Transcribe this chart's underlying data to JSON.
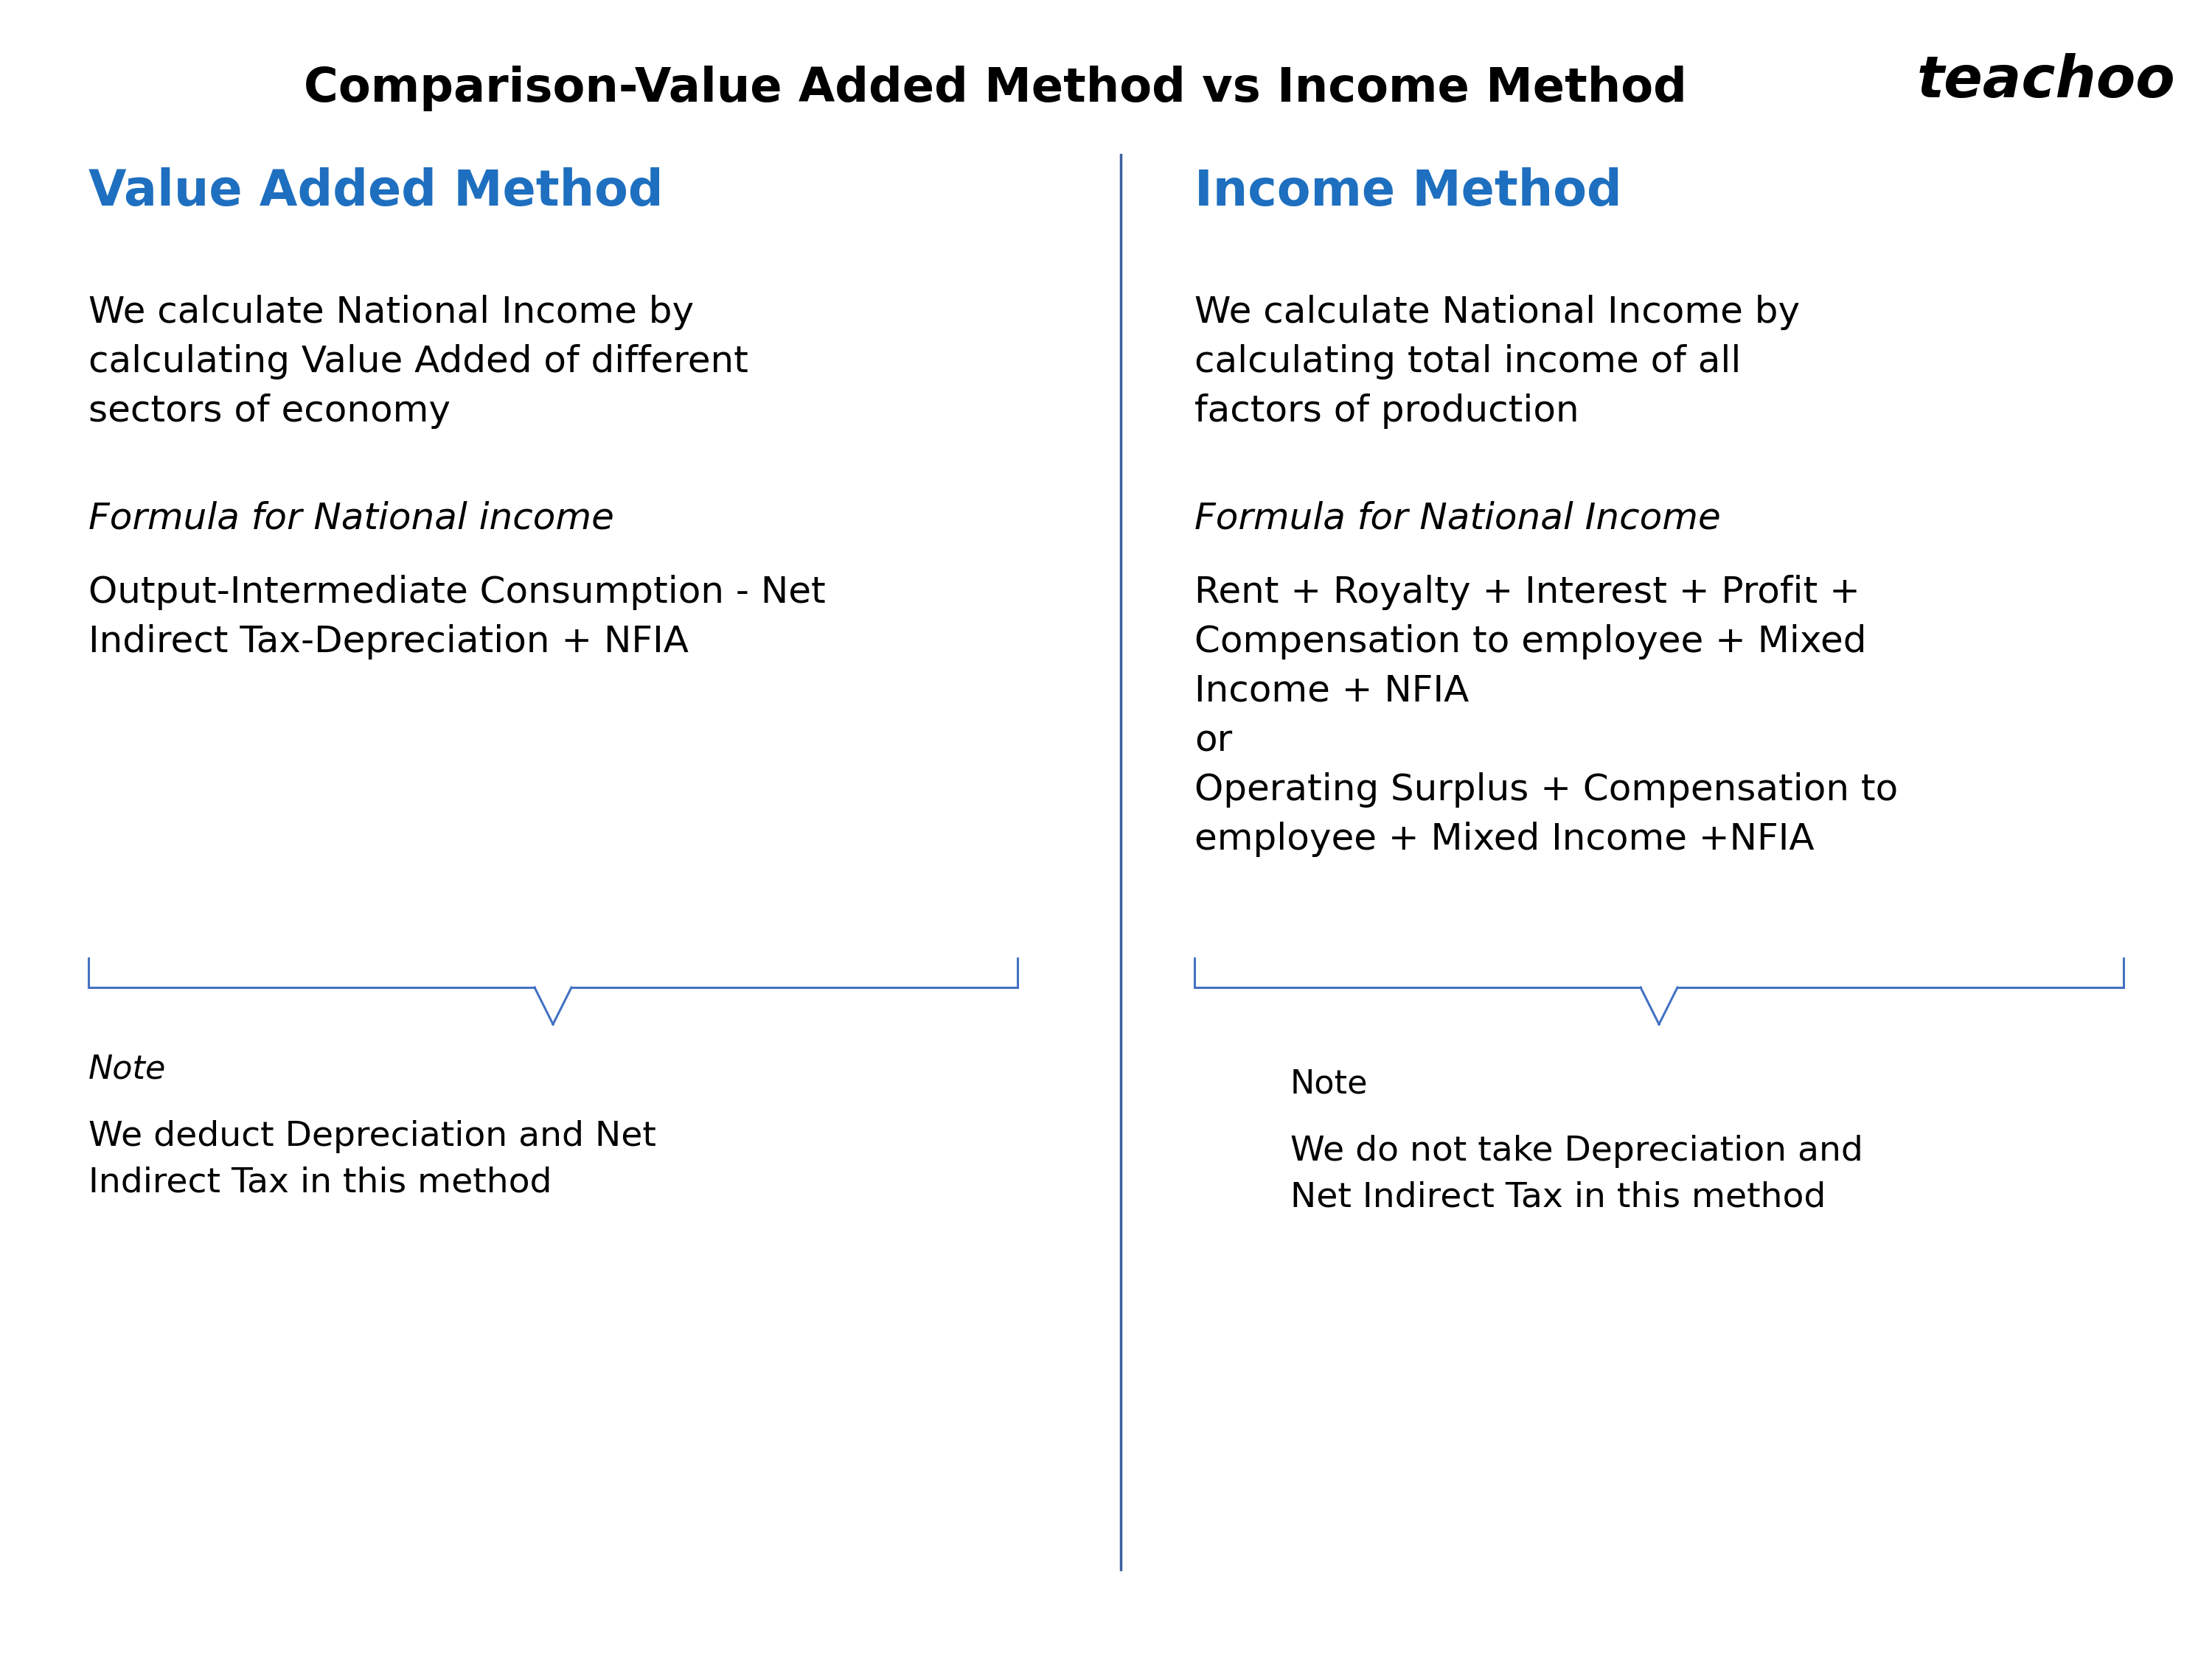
{
  "title": "Comparison-Value Added Method vs Income Method",
  "teachoo_text": "teachoo",
  "left_heading": "Value Added Method",
  "right_heading": "Income Method",
  "left_body1": "We calculate National Income by\ncalculating Value Added of different\nsectors of economy",
  "left_formula_title": "Formula for National income",
  "left_formula_body": "Output-Intermediate Consumption - Net\nIndirect Tax-Depreciation + NFIA",
  "left_note_title": "Note",
  "left_note_body": "We deduct Depreciation and Net\nIndirect Tax in this method",
  "right_body1": "We calculate National Income by\ncalculating total income of all\nfactors of production",
  "right_formula_title": "Formula for National Income",
  "right_formula_body": "Rent + Royalty + Interest + Profit +\nCompensation to employee + Mixed\nIncome + NFIA\nor\nOperating Surplus + Compensation to\nemployee + Mixed Income +NFIA",
  "right_note_title": "Note",
  "right_note_body": "We do not take Depreciation and\nNet Indirect Tax in this method",
  "title_color": "#000000",
  "heading_color": "#1E6FBF",
  "body_color": "#000000",
  "formula_title_color": "#000000",
  "note_title_color": "#000000",
  "divider_color": "#3B5FA0",
  "brace_color": "#4472C4",
  "bg_color": "#ffffff",
  "title_fontsize": 46,
  "heading_fontsize": 48,
  "body_fontsize": 36,
  "formula_title_fontsize": 36,
  "note_title_fontsize": 32,
  "note_body_fontsize": 34,
  "teachoo_fontsize": 56
}
